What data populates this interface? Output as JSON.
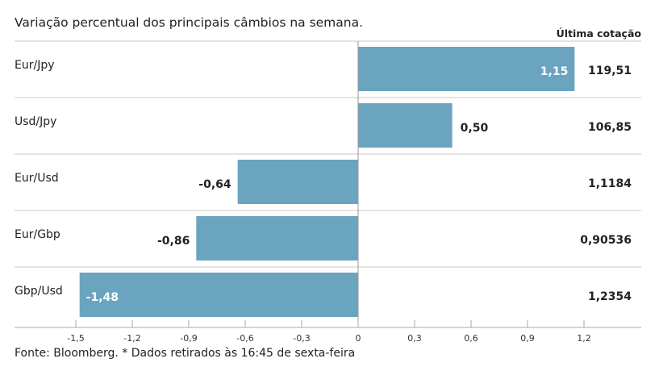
{
  "chart_data": {
    "type": "bar",
    "orientation": "horizontal",
    "title": "Variação percentual dos principais câmbios na semana.",
    "categories": [
      "Eur/Jpy",
      "Usd/Jpy",
      "Eur/Usd",
      "Eur/Gbp",
      "Gbp/Usd"
    ],
    "values": [
      1.15,
      0.5,
      -0.64,
      -0.86,
      -1.48
    ],
    "value_labels": [
      "1,15",
      "0,50",
      "-0,64",
      "-0,86",
      "-1,48"
    ],
    "label_inside": [
      true,
      false,
      false,
      false,
      true
    ],
    "quote_header": "Última cotação",
    "quotes": [
      "119,51",
      "106,85",
      "1,1184",
      "0,90536",
      "1,2354"
    ],
    "xlim": [
      -1.65,
      1.505
    ],
    "xticks": [
      -1.5,
      -1.2,
      -0.9,
      -0.6,
      -0.3,
      0,
      0.3,
      0.6,
      0.9,
      1.2
    ],
    "xtick_labels": [
      "-1,5",
      "-1,2",
      "-0,9",
      "-0,6",
      "-0,3",
      "0",
      "0,3",
      "0,6",
      "0,9",
      "1,2"
    ],
    "grid": false,
    "bar_color": "#6aa4bf",
    "footnote": "Fonte: Bloomberg.  * Dados retirados às 16:45 de sexta-feira"
  }
}
